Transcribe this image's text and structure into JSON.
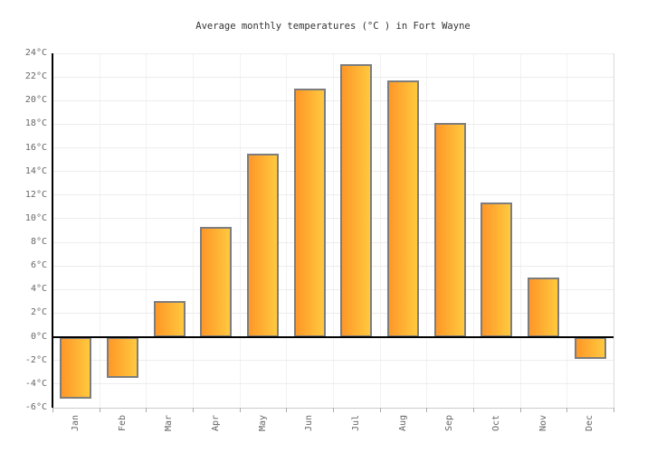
{
  "title": "Average monthly temperatures (°C ) in Fort Wayne",
  "chart_data": {
    "type": "bar",
    "title": "Average monthly temperatures (°C ) in Fort Wayne",
    "categories": [
      "Jan",
      "Feb",
      "Mar",
      "Apr",
      "May",
      "Jun",
      "Jul",
      "Aug",
      "Sep",
      "Oct",
      "Nov",
      "Dec"
    ],
    "values": [
      -5.2,
      -3.5,
      3,
      9.3,
      15.5,
      21,
      23.1,
      21.7,
      18.1,
      11.4,
      5,
      -1.9
    ],
    "unit": "°C",
    "xlabel": "",
    "ylabel": "",
    "ylim": [
      -6,
      24
    ],
    "ytick_step": 2,
    "y_tick_labels": [
      "24°C",
      "22°C",
      "20°C",
      "18°C",
      "16°C",
      "14°C",
      "12°C",
      "10°C",
      "8°C",
      "6°C",
      "4°C",
      "2°C",
      "0°C",
      "-2°C",
      "-4°C",
      "-6°C"
    ],
    "grid": true,
    "legend": false,
    "colors": {
      "bar_gradient_left": "#FF9728",
      "bar_gradient_right": "#FFC93E",
      "bar_border": "#7D7D7D",
      "gridline": "#ECECEC",
      "vgridline": "#F2F2F2",
      "plot_border": "#D9D9D9",
      "axis": "#000000",
      "zero_line": "#000000",
      "tick": "#AAAAAA",
      "tick_label": "#666666",
      "title_text": "#333333",
      "background": "#FFFFFF"
    }
  }
}
